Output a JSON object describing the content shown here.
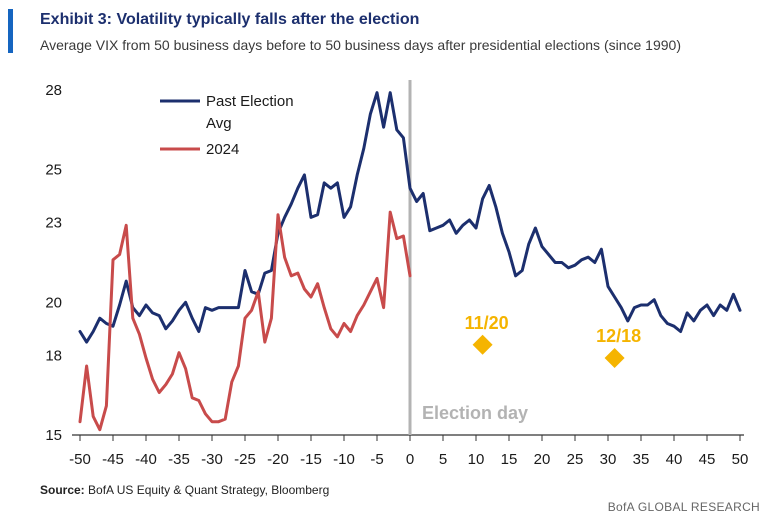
{
  "header": {
    "title": "Exhibit 3: Volatility typically falls after the election",
    "subtitle": "Average VIX from 50 business days before to 50 business days after presidential elections (since 1990)"
  },
  "footer": {
    "source_label": "Source:",
    "source_text": "BofA US Equity & Quant Strategy, Bloomberg",
    "brand": "BofA GLOBAL RESEARCH"
  },
  "colors": {
    "past_avg": "#1c2f6e",
    "series_2024": "#c84b4b",
    "marker": "#f5b400",
    "event_line": "#b3b3b3",
    "accent": "#1565c0"
  },
  "chart_data": {
    "type": "line",
    "title": "Exhibit 3: Volatility typically falls after the election",
    "xlabel": "",
    "ylabel": "",
    "xlim": [
      -50,
      50
    ],
    "ylim": [
      15,
      28
    ],
    "x_ticks": [
      -50,
      -45,
      -40,
      -35,
      -30,
      -25,
      -20,
      -15,
      -10,
      -5,
      0,
      5,
      10,
      15,
      20,
      25,
      30,
      35,
      40,
      45,
      50
    ],
    "y_ticks": [
      15,
      18,
      20,
      23,
      25,
      28
    ],
    "legend": [
      "Past Election Avg",
      "2024"
    ],
    "legend_position": "top-left",
    "series": [
      {
        "name": "Past Election Avg",
        "color": "#1c2f6e",
        "x": [
          -50,
          -49,
          -48,
          -47,
          -46,
          -45,
          -44,
          -43,
          -42,
          -41,
          -40,
          -39,
          -38,
          -37,
          -36,
          -35,
          -34,
          -33,
          -32,
          -31,
          -30,
          -29,
          -28,
          -27,
          -26,
          -25,
          -24,
          -23,
          -22,
          -21,
          -20,
          -19,
          -18,
          -17,
          -16,
          -15,
          -14,
          -13,
          -12,
          -11,
          -10,
          -9,
          -8,
          -7,
          -6,
          -5,
          -4,
          -3,
          -2,
          -1,
          0,
          1,
          2,
          3,
          4,
          5,
          6,
          7,
          8,
          9,
          10,
          11,
          12,
          13,
          14,
          15,
          16,
          17,
          18,
          19,
          20,
          21,
          22,
          23,
          24,
          25,
          26,
          27,
          28,
          29,
          30,
          31,
          32,
          33,
          34,
          35,
          36,
          37,
          38,
          39,
          40,
          41,
          42,
          43,
          44,
          45,
          46,
          47,
          48,
          49,
          50
        ],
        "values": [
          18.9,
          18.5,
          18.9,
          19.4,
          19.2,
          19.1,
          19.9,
          20.8,
          19.8,
          19.5,
          19.9,
          19.6,
          19.5,
          19.0,
          19.3,
          19.7,
          20.0,
          19.4,
          18.9,
          19.8,
          19.7,
          19.8,
          19.8,
          19.8,
          19.8,
          21.2,
          20.4,
          20.3,
          21.1,
          21.2,
          22.6,
          23.2,
          23.7,
          24.3,
          24.8,
          23.2,
          23.3,
          24.5,
          24.3,
          24.5,
          23.2,
          23.6,
          24.8,
          25.8,
          27.1,
          27.9,
          26.6,
          27.9,
          26.5,
          26.2,
          24.3,
          23.8,
          24.1,
          22.7,
          22.8,
          22.9,
          23.1,
          22.6,
          22.9,
          23.1,
          22.8,
          23.9,
          24.4,
          23.6,
          22.6,
          21.9,
          21.0,
          21.2,
          22.2,
          22.8,
          22.1,
          21.8,
          21.5,
          21.5,
          21.3,
          21.4,
          21.6,
          21.7,
          21.5,
          22.0,
          20.6,
          20.2,
          19.8,
          19.3,
          19.8,
          19.9,
          19.9,
          20.1,
          19.5,
          19.2,
          19.1,
          18.9,
          19.6,
          19.3,
          19.7,
          19.9,
          19.5,
          19.9,
          19.7,
          20.3,
          19.7
        ]
      },
      {
        "name": "2024",
        "color": "#c84b4b",
        "x": [
          -50,
          -49,
          -48,
          -47,
          -46,
          -45,
          -44,
          -43,
          -42,
          -41,
          -40,
          -39,
          -38,
          -37,
          -36,
          -35,
          -34,
          -33,
          -32,
          -31,
          -30,
          -29,
          -28,
          -27,
          -26,
          -25,
          -24,
          -23,
          -22,
          -21,
          -20,
          -19,
          -18,
          -17,
          -16,
          -15,
          -14,
          -13,
          -12,
          -11,
          -10,
          -9,
          -8,
          -7,
          -6,
          -5,
          -4,
          -3,
          -2,
          -1,
          0
        ],
        "values": [
          15.5,
          17.6,
          15.7,
          15.2,
          16.1,
          21.6,
          21.8,
          22.9,
          19.4,
          18.8,
          17.9,
          17.1,
          16.6,
          16.9,
          17.3,
          18.1,
          17.5,
          16.4,
          16.3,
          15.8,
          15.5,
          15.5,
          15.6,
          17.0,
          17.6,
          19.4,
          19.7,
          20.4,
          18.5,
          19.4,
          23.3,
          21.7,
          21.0,
          21.1,
          20.5,
          20.2,
          20.7,
          19.8,
          19.0,
          18.7,
          19.2,
          18.9,
          19.5,
          19.9,
          20.4,
          20.9,
          19.8,
          23.4,
          22.4,
          22.5,
          21.0
        ]
      }
    ],
    "markers": [
      {
        "label": "11/20",
        "x": 11,
        "y": 18.4
      },
      {
        "label": "12/18",
        "x": 31,
        "y": 17.9
      }
    ],
    "event_line": {
      "label": "Election day",
      "x": 0
    }
  }
}
